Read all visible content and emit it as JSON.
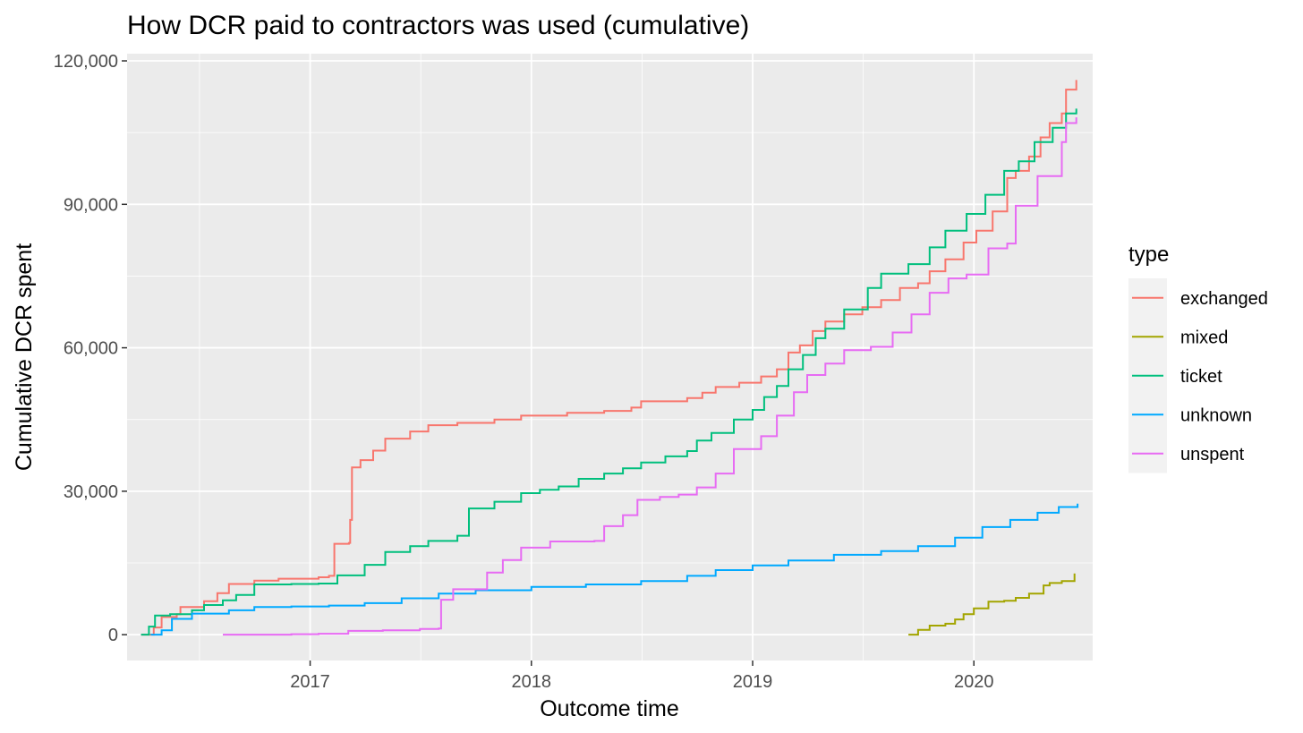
{
  "chart_data": {
    "type": "line",
    "title": "How DCR paid to contractors was used (cumulative)",
    "xlabel": "Outcome time",
    "ylabel": "Cumulative DCR spent",
    "x_axis_type": "date",
    "xlim": [
      "2016-03-05",
      "2020-07-15"
    ],
    "ylim": [
      -5400,
      121500
    ],
    "x_ticks": [
      {
        "value": "2017-01-01",
        "label": "2017"
      },
      {
        "value": "2018-01-01",
        "label": "2018"
      },
      {
        "value": "2019-01-01",
        "label": "2019"
      },
      {
        "value": "2020-01-01",
        "label": "2020"
      }
    ],
    "y_ticks": [
      {
        "value": 0,
        "label": "0"
      },
      {
        "value": 30000,
        "label": "30,000"
      },
      {
        "value": 60000,
        "label": "60,000"
      },
      {
        "value": 90000,
        "label": "90,000"
      },
      {
        "value": 120000,
        "label": "120,000"
      }
    ],
    "grid": true,
    "legend": {
      "title": "type",
      "position": "right"
    },
    "series": [
      {
        "name": "exchanged",
        "color": "#F8766D",
        "points": [
          [
            "2016-03-28",
            0
          ],
          [
            "2016-04-18",
            1500
          ],
          [
            "2016-05-01",
            3700
          ],
          [
            "2016-05-26",
            4300
          ],
          [
            "2016-06-01",
            5800
          ],
          [
            "2016-07-10",
            7000
          ],
          [
            "2016-08-01",
            8700
          ],
          [
            "2016-08-20",
            10600
          ],
          [
            "2016-10-01",
            11300
          ],
          [
            "2016-11-10",
            11700
          ],
          [
            "2017-01-15",
            12000
          ],
          [
            "2017-02-01",
            12300
          ],
          [
            "2017-02-10",
            19000
          ],
          [
            "2017-03-06",
            19200
          ],
          [
            "2017-03-08",
            24000
          ],
          [
            "2017-03-11",
            35000
          ],
          [
            "2017-03-25",
            36500
          ],
          [
            "2017-04-15",
            38500
          ],
          [
            "2017-05-05",
            41000
          ],
          [
            "2017-06-15",
            42500
          ],
          [
            "2017-07-15",
            43800
          ],
          [
            "2017-09-01",
            44300
          ],
          [
            "2017-11-01",
            45000
          ],
          [
            "2017-12-15",
            45800
          ],
          [
            "2018-03-01",
            46400
          ],
          [
            "2018-05-01",
            46800
          ],
          [
            "2018-06-15",
            47500
          ],
          [
            "2018-07-01",
            48800
          ],
          [
            "2018-09-15",
            49500
          ],
          [
            "2018-10-10",
            50600
          ],
          [
            "2018-11-01",
            51800
          ],
          [
            "2018-12-10",
            52700
          ],
          [
            "2019-01-15",
            54000
          ],
          [
            "2019-02-10",
            55500
          ],
          [
            "2019-03-01",
            59000
          ],
          [
            "2019-03-20",
            60500
          ],
          [
            "2019-04-10",
            63500
          ],
          [
            "2019-05-01",
            65500
          ],
          [
            "2019-06-01",
            67000
          ],
          [
            "2019-07-01",
            68500
          ],
          [
            "2019-08-01",
            70000
          ],
          [
            "2019-09-01",
            72500
          ],
          [
            "2019-10-01",
            73500
          ],
          [
            "2019-10-20",
            76000
          ],
          [
            "2019-11-15",
            78500
          ],
          [
            "2019-12-15",
            82000
          ],
          [
            "2020-01-05",
            84500
          ],
          [
            "2020-02-01",
            88500
          ],
          [
            "2020-02-25",
            95500
          ],
          [
            "2020-03-10",
            97000
          ],
          [
            "2020-04-01",
            100000
          ],
          [
            "2020-04-20",
            104000
          ],
          [
            "2020-05-05",
            107000
          ],
          [
            "2020-05-25",
            109000
          ],
          [
            "2020-06-01",
            114000
          ],
          [
            "2020-06-18",
            116000
          ]
        ]
      },
      {
        "name": "mixed",
        "color": "#A3A500",
        "points": [
          [
            "2019-09-15",
            0
          ],
          [
            "2019-10-01",
            1000
          ],
          [
            "2019-10-20",
            1900
          ],
          [
            "2019-11-15",
            2300
          ],
          [
            "2019-12-01",
            3200
          ],
          [
            "2019-12-15",
            4300
          ],
          [
            "2020-01-01",
            5500
          ],
          [
            "2020-01-25",
            6900
          ],
          [
            "2020-02-20",
            7100
          ],
          [
            "2020-03-10",
            7700
          ],
          [
            "2020-04-01",
            8600
          ],
          [
            "2020-04-25",
            10300
          ],
          [
            "2020-05-05",
            10800
          ],
          [
            "2020-05-25",
            11200
          ],
          [
            "2020-06-15",
            12800
          ]
        ]
      },
      {
        "name": "ticket",
        "color": "#00BF7D",
        "points": [
          [
            "2016-03-28",
            0
          ],
          [
            "2016-04-10",
            1700
          ],
          [
            "2016-04-20",
            4000
          ],
          [
            "2016-05-15",
            4300
          ],
          [
            "2016-06-20",
            5100
          ],
          [
            "2016-07-10",
            6200
          ],
          [
            "2016-08-10",
            7200
          ],
          [
            "2016-09-01",
            8300
          ],
          [
            "2016-10-01",
            10500
          ],
          [
            "2016-12-01",
            10600
          ],
          [
            "2017-01-15",
            10700
          ],
          [
            "2017-02-15",
            12400
          ],
          [
            "2017-04-01",
            14600
          ],
          [
            "2017-05-05",
            17300
          ],
          [
            "2017-06-15",
            18500
          ],
          [
            "2017-07-15",
            19600
          ],
          [
            "2017-09-01",
            20700
          ],
          [
            "2017-09-20",
            26400
          ],
          [
            "2017-11-01",
            27800
          ],
          [
            "2017-12-15",
            29600
          ],
          [
            "2018-01-15",
            30300
          ],
          [
            "2018-02-15",
            31000
          ],
          [
            "2018-03-20",
            32600
          ],
          [
            "2018-05-01",
            33700
          ],
          [
            "2018-06-01",
            34800
          ],
          [
            "2018-07-01",
            36000
          ],
          [
            "2018-08-10",
            37300
          ],
          [
            "2018-09-15",
            38400
          ],
          [
            "2018-10-01",
            40600
          ],
          [
            "2018-10-25",
            42200
          ],
          [
            "2018-12-01",
            45000
          ],
          [
            "2019-01-01",
            47000
          ],
          [
            "2019-01-20",
            49700
          ],
          [
            "2019-02-10",
            52000
          ],
          [
            "2019-03-01",
            55500
          ],
          [
            "2019-03-25",
            58500
          ],
          [
            "2019-04-15",
            62000
          ],
          [
            "2019-05-01",
            64000
          ],
          [
            "2019-06-01",
            68000
          ],
          [
            "2019-07-10",
            72500
          ],
          [
            "2019-08-01",
            75500
          ],
          [
            "2019-09-15",
            77500
          ],
          [
            "2019-10-20",
            81000
          ],
          [
            "2019-11-15",
            84500
          ],
          [
            "2019-12-20",
            88000
          ],
          [
            "2020-01-20",
            92000
          ],
          [
            "2020-02-20",
            97000
          ],
          [
            "2020-03-15",
            99000
          ],
          [
            "2020-04-10",
            103000
          ],
          [
            "2020-05-10",
            106000
          ],
          [
            "2020-06-01",
            109000
          ],
          [
            "2020-06-18",
            110000
          ]
        ]
      },
      {
        "name": "unknown",
        "color": "#00A9FF",
        "points": [
          [
            "2016-04-13",
            0
          ],
          [
            "2016-05-01",
            900
          ],
          [
            "2016-05-18",
            3300
          ],
          [
            "2016-06-20",
            4400
          ],
          [
            "2016-08-20",
            5100
          ],
          [
            "2016-10-01",
            5800
          ],
          [
            "2016-12-01",
            5900
          ],
          [
            "2017-02-01",
            6100
          ],
          [
            "2017-04-01",
            6600
          ],
          [
            "2017-06-01",
            7600
          ],
          [
            "2017-08-01",
            8600
          ],
          [
            "2017-10-01",
            9300
          ],
          [
            "2018-01-01",
            10000
          ],
          [
            "2018-04-01",
            10500
          ],
          [
            "2018-07-01",
            11200
          ],
          [
            "2018-09-15",
            12300
          ],
          [
            "2018-11-01",
            13500
          ],
          [
            "2019-01-01",
            14500
          ],
          [
            "2019-03-01",
            15500
          ],
          [
            "2019-05-15",
            16700
          ],
          [
            "2019-08-01",
            17500
          ],
          [
            "2019-10-01",
            18500
          ],
          [
            "2019-12-01",
            20300
          ],
          [
            "2020-01-15",
            22500
          ],
          [
            "2020-03-01",
            24000
          ],
          [
            "2020-04-15",
            25500
          ],
          [
            "2020-05-20",
            26700
          ],
          [
            "2020-06-20",
            27400
          ]
        ]
      },
      {
        "name": "unspent",
        "color": "#E76BF3",
        "points": [
          [
            "2016-08-10",
            0
          ],
          [
            "2016-12-01",
            100
          ],
          [
            "2017-01-15",
            200
          ],
          [
            "2017-03-05",
            800
          ],
          [
            "2017-05-01",
            900
          ],
          [
            "2017-07-01",
            1200
          ],
          [
            "2017-08-01",
            1300
          ],
          [
            "2017-08-05",
            7300
          ],
          [
            "2017-08-25",
            9500
          ],
          [
            "2017-10-20",
            13000
          ],
          [
            "2017-11-15",
            15600
          ],
          [
            "2017-12-15",
            18200
          ],
          [
            "2018-02-01",
            19500
          ],
          [
            "2018-04-15",
            19600
          ],
          [
            "2018-05-01",
            22700
          ],
          [
            "2018-06-01",
            25000
          ],
          [
            "2018-06-25",
            28200
          ],
          [
            "2018-08-01",
            28800
          ],
          [
            "2018-09-01",
            29300
          ],
          [
            "2018-10-01",
            30800
          ],
          [
            "2018-11-01",
            33700
          ],
          [
            "2018-12-01",
            38800
          ],
          [
            "2019-01-15",
            41500
          ],
          [
            "2019-02-10",
            45800
          ],
          [
            "2019-03-10",
            50700
          ],
          [
            "2019-04-01",
            54300
          ],
          [
            "2019-05-01",
            56700
          ],
          [
            "2019-06-01",
            59500
          ],
          [
            "2019-07-15",
            60200
          ],
          [
            "2019-08-20",
            63200
          ],
          [
            "2019-09-20",
            67000
          ],
          [
            "2019-10-20",
            71500
          ],
          [
            "2019-11-20",
            74500
          ],
          [
            "2019-12-20",
            75300
          ],
          [
            "2020-01-25",
            80800
          ],
          [
            "2020-02-25",
            81800
          ],
          [
            "2020-03-10",
            89700
          ],
          [
            "2020-04-15",
            95900
          ],
          [
            "2020-05-25",
            103000
          ],
          [
            "2020-06-01",
            107000
          ],
          [
            "2020-06-18",
            108200
          ]
        ]
      }
    ]
  }
}
